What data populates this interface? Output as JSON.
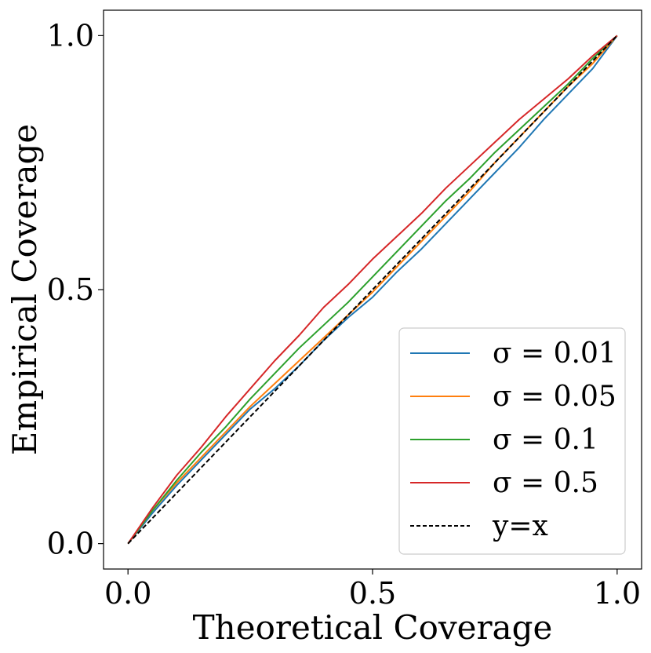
{
  "chart_data": {
    "type": "line",
    "title": "",
    "xlabel": "Theoretical Coverage",
    "ylabel": "Empirical Coverage",
    "xlim": [
      -0.05,
      1.05
    ],
    "ylim": [
      -0.05,
      1.05
    ],
    "xticks": [
      0.0,
      0.5,
      1.0
    ],
    "yticks": [
      0.0,
      0.5,
      1.0
    ],
    "xtick_labels": [
      "0.0",
      "0.5",
      "1.0"
    ],
    "ytick_labels": [
      "0.0",
      "0.5",
      "1.0"
    ],
    "grid": false,
    "legend_position": "lower-right",
    "series": [
      {
        "name": "σ = 0.01",
        "color": "#1f77b4",
        "style": "solid",
        "x": [
          0.0,
          0.05,
          0.1,
          0.15,
          0.2,
          0.25,
          0.3,
          0.35,
          0.4,
          0.45,
          0.5,
          0.55,
          0.6,
          0.65,
          0.7,
          0.75,
          0.8,
          0.85,
          0.9,
          0.95,
          1.0
        ],
        "y": [
          0.0,
          0.06,
          0.115,
          0.165,
          0.215,
          0.265,
          0.305,
          0.35,
          0.4,
          0.445,
          0.485,
          0.535,
          0.58,
          0.63,
          0.68,
          0.73,
          0.78,
          0.835,
          0.885,
          0.935,
          1.0
        ]
      },
      {
        "name": "σ = 0.05",
        "color": "#ff7f0e",
        "style": "solid",
        "x": [
          0.0,
          0.05,
          0.1,
          0.15,
          0.2,
          0.25,
          0.3,
          0.35,
          0.4,
          0.45,
          0.5,
          0.55,
          0.6,
          0.65,
          0.7,
          0.75,
          0.8,
          0.85,
          0.9,
          0.95,
          1.0
        ],
        "y": [
          0.0,
          0.065,
          0.12,
          0.17,
          0.22,
          0.27,
          0.315,
          0.36,
          0.405,
          0.45,
          0.495,
          0.545,
          0.595,
          0.645,
          0.695,
          0.75,
          0.8,
          0.85,
          0.9,
          0.945,
          1.0
        ]
      },
      {
        "name": "σ = 0.1",
        "color": "#2ca02c",
        "style": "solid",
        "x": [
          0.0,
          0.05,
          0.1,
          0.15,
          0.2,
          0.25,
          0.3,
          0.35,
          0.4,
          0.45,
          0.5,
          0.55,
          0.6,
          0.65,
          0.7,
          0.75,
          0.8,
          0.85,
          0.9,
          0.95,
          1.0
        ],
        "y": [
          0.0,
          0.065,
          0.125,
          0.18,
          0.23,
          0.285,
          0.335,
          0.385,
          0.43,
          0.475,
          0.525,
          0.575,
          0.625,
          0.675,
          0.72,
          0.77,
          0.815,
          0.86,
          0.905,
          0.955,
          1.0
        ]
      },
      {
        "name": "σ = 0.5",
        "color": "#d62728",
        "style": "solid",
        "x": [
          0.0,
          0.05,
          0.1,
          0.15,
          0.2,
          0.25,
          0.3,
          0.35,
          0.4,
          0.45,
          0.5,
          0.55,
          0.6,
          0.65,
          0.7,
          0.75,
          0.8,
          0.85,
          0.9,
          0.95,
          1.0
        ],
        "y": [
          0.0,
          0.07,
          0.135,
          0.19,
          0.25,
          0.305,
          0.36,
          0.41,
          0.465,
          0.51,
          0.56,
          0.605,
          0.65,
          0.7,
          0.745,
          0.79,
          0.835,
          0.875,
          0.915,
          0.96,
          1.0
        ]
      },
      {
        "name": "y=x",
        "color": "#000000",
        "style": "dashed",
        "x": [
          0.0,
          1.0
        ],
        "y": [
          0.0,
          1.0
        ]
      }
    ]
  }
}
